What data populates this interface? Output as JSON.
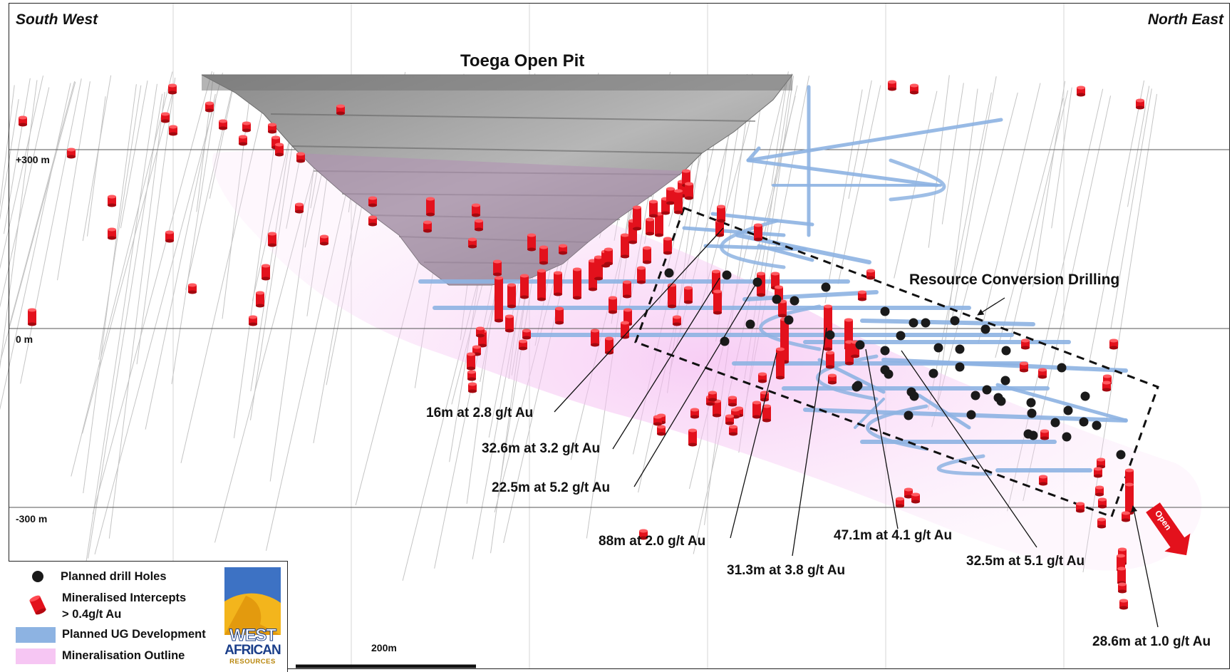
{
  "header": {
    "left_direction": "South West",
    "right_direction": "North East",
    "pit_title": "Toega Open Pit"
  },
  "elevations": [
    "+300 m",
    "0 m",
    "-300 m"
  ],
  "zone_label": "Resource Conversion Drilling",
  "open_label": "Open",
  "intercepts": [
    "16m at 2.8 g/t Au",
    "32.6m at 3.2 g/t Au",
    "22.5m at 5.2 g/t Au",
    "88m at 2.0 g/t Au",
    "31.3m at 3.8 g/t Au",
    "47.1m at 4.1 g/t Au",
    "32.5m at 5.1 g/t Au",
    "28.6m at 1.0 g/t Au"
  ],
  "legend": {
    "planned_holes": "Planned drill Holes",
    "intercepts_line1": "Mineralised Intercepts",
    "intercepts_line2": "> 0.4g/t Au",
    "ug_development": "Planned UG Development",
    "mineralisation": "Mineralisation Outline"
  },
  "logo": {
    "line1": "WEST",
    "line2": "AFRICAN",
    "line3": "RESOURCES"
  },
  "scale_bar": "200m",
  "colors": {
    "intercept_red": "#e3111c",
    "ug_blue": "#8db3e2",
    "mineral_pink": "#f6c6f3",
    "pit_grey": "#9a9a9a",
    "hole_black": "#1a1a1a"
  }
}
